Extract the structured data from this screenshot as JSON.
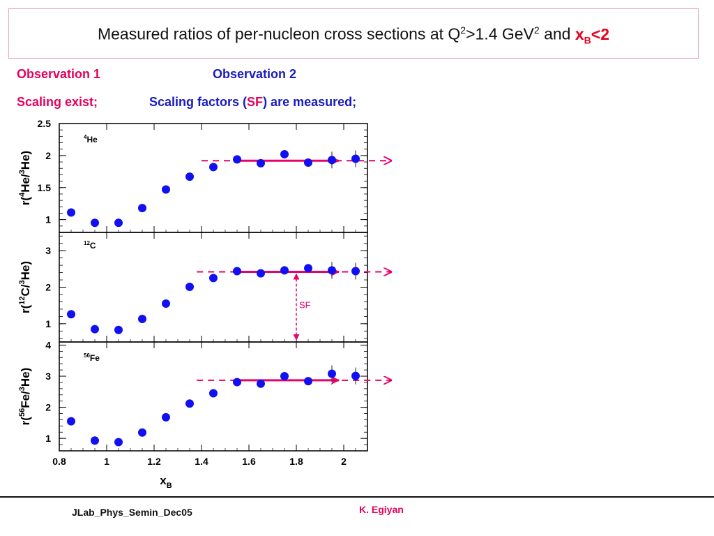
{
  "title": {
    "prefix": "Measured ratios of per-nucleon cross sections at Q",
    "sup1": "2",
    "mid": ">1.4 GeV",
    "sup2": "2",
    "and": " and ",
    "xb_x": "x",
    "xb_sub": "B",
    "xb_tail": "<2"
  },
  "observations": {
    "obs1_title": "Observation 1",
    "obs2_title": "Observation 2",
    "obs1_text": "Scaling exist;",
    "obs2_text_before": "Scaling factors (",
    "obs2_text_sf": "SF",
    "obs2_text_after": ") are measured;"
  },
  "colors": {
    "accent_pink": "#e8005a",
    "title_red": "#e8001c",
    "blue_text": "#1a1ac0",
    "marker_blue": "#1010f0",
    "arrow_pink": "#e8006e"
  },
  "footer": {
    "left": "JLab_Phys_Semin_Dec05",
    "right": "K. Egiyan"
  },
  "chart_data": [
    {
      "type": "scatter",
      "panel_label": "4He",
      "ylabel": "r(4He/3He)",
      "ylim": [
        0.8,
        2.5
      ],
      "yticks": [
        1,
        1.5,
        2,
        2.5
      ],
      "ytick_labels": [
        "1",
        "1.5",
        "2",
        "2.5"
      ],
      "x": [
        0.85,
        0.95,
        1.05,
        1.15,
        1.25,
        1.35,
        1.45,
        1.55,
        1.65,
        1.75,
        1.85,
        1.95,
        2.05
      ],
      "y": [
        1.11,
        0.95,
        0.95,
        1.18,
        1.47,
        1.67,
        1.82,
        1.94,
        1.88,
        2.02,
        1.89,
        1.93,
        1.95
      ],
      "scaling_level": 1.92,
      "solid_arrow_x": [
        1.55,
        1.95
      ],
      "dashed_line_x": [
        1.4,
        2.2
      ]
    },
    {
      "type": "scatter",
      "panel_label": "12C",
      "ylabel": "r(12C/3He)",
      "ylim": [
        0.5,
        3.5
      ],
      "yticks": [
        1,
        2,
        3
      ],
      "ytick_labels": [
        "1",
        "2",
        "3"
      ],
      "x": [
        0.85,
        0.95,
        1.05,
        1.15,
        1.25,
        1.35,
        1.45,
        1.55,
        1.65,
        1.75,
        1.85,
        1.95,
        2.05
      ],
      "y": [
        1.26,
        0.85,
        0.83,
        1.13,
        1.55,
        2.01,
        2.25,
        2.44,
        2.38,
        2.46,
        2.52,
        2.46,
        2.44
      ],
      "scaling_level": 2.42,
      "solid_arrow_x": [
        1.55,
        1.95
      ],
      "dashed_line_x": [
        1.38,
        2.2
      ],
      "sf_annotation": {
        "text": "SF",
        "x": 1.8,
        "from_y": 0.5,
        "to_y": 2.42
      }
    },
    {
      "type": "scatter",
      "panel_label": "56Fe",
      "ylabel": "r(56Fe/3He)",
      "ylim": [
        0.6,
        4.1
      ],
      "yticks": [
        1,
        2,
        3,
        4
      ],
      "ytick_labels": [
        "1",
        "2",
        "3",
        "4"
      ],
      "x": [
        0.85,
        0.95,
        1.05,
        1.15,
        1.25,
        1.35,
        1.45,
        1.55,
        1.65,
        1.75,
        1.85,
        1.95,
        2.05
      ],
      "y": [
        1.55,
        0.93,
        0.88,
        1.19,
        1.68,
        2.12,
        2.45,
        2.81,
        2.76,
        3.0,
        2.84,
        3.08,
        3.01
      ],
      "scaling_level": 2.87,
      "solid_arrow_x": [
        1.55,
        1.95
      ],
      "dashed_line_x": [
        1.38,
        2.2
      ],
      "xlabel": "xB",
      "xlim": [
        0.8,
        2.1
      ],
      "xticks": [
        0.8,
        1,
        1.2,
        1.4,
        1.6,
        1.8,
        2
      ],
      "xtick_labels": [
        "0.8",
        "1",
        "1.2",
        "1.4",
        "1.6",
        "1.8",
        "2"
      ]
    }
  ]
}
